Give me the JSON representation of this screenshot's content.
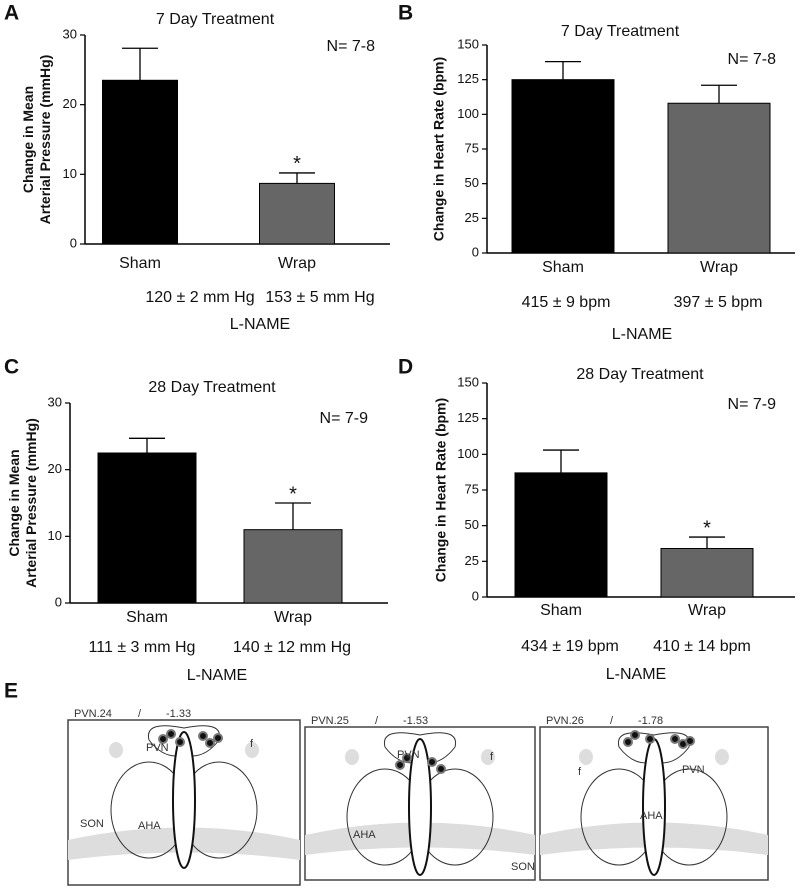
{
  "chart_data": [
    {
      "type": "bar",
      "panel": "A",
      "title": "7 Day  Treatment",
      "y_label": [
        "Change in Mean",
        "Arterial  Pressure (mmHg)"
      ],
      "categories": [
        "Sham",
        "Wrap"
      ],
      "values": [
        23.5,
        8.7
      ],
      "errors": [
        4.6,
        1.5
      ],
      "colors": [
        "#000000",
        "#666666"
      ],
      "ylim": [
        0,
        30
      ],
      "yticks": [
        0,
        10,
        20,
        30
      ],
      "n_label": "N= 7-8",
      "significant": [
        false,
        true
      ],
      "significance_label": "*",
      "baseline": [
        "120 ± 2 mm  Hg",
        "153 ± 5 mm  Hg"
      ],
      "group_label": "L-NAME"
    },
    {
      "type": "bar",
      "panel": "B",
      "title": "7 Day  Treatment",
      "y_label": [
        "Change in Heart  Rate (bpm)"
      ],
      "categories": [
        "Sham",
        "Wrap"
      ],
      "values": [
        125,
        108
      ],
      "errors": [
        13,
        13
      ],
      "colors": [
        "#000000",
        "#666666"
      ],
      "ylim": [
        0,
        150
      ],
      "yticks": [
        0,
        25,
        50,
        75,
        100,
        125,
        150
      ],
      "n_label": "N= 7-8",
      "significant": [
        false,
        false
      ],
      "significance_label": "*",
      "baseline": [
        "415 ± 9 bpm",
        "397 ± 5 bpm"
      ],
      "group_label": "L-NAME"
    },
    {
      "type": "bar",
      "panel": "C",
      "title": "28 Day Treatment",
      "y_label": [
        "Change in Mean",
        "Arterial Pressure (mmHg)"
      ],
      "categories": [
        "Sham",
        "Wrap"
      ],
      "values": [
        22.5,
        11
      ],
      "errors": [
        2.2,
        4
      ],
      "colors": [
        "#000000",
        "#666666"
      ],
      "ylim": [
        0,
        30
      ],
      "yticks": [
        0,
        10,
        20,
        30
      ],
      "n_label": "N= 7-9",
      "significant": [
        false,
        true
      ],
      "significance_label": "*",
      "baseline": [
        "111 ± 3 mm  Hg",
        "140 ± 12 mm  Hg"
      ],
      "group_label": "L-NAME"
    },
    {
      "type": "bar",
      "panel": "D",
      "title": "28  Day  Treatment",
      "y_label": [
        "Change in  Heart Rate (bpm)"
      ],
      "categories": [
        "Sham",
        "Wrap"
      ],
      "values": [
        87,
        34
      ],
      "errors": [
        16,
        8
      ],
      "colors": [
        "#000000",
        "#666666"
      ],
      "ylim": [
        0,
        150
      ],
      "yticks": [
        0,
        25,
        50,
        75,
        100,
        125,
        150
      ],
      "n_label": "N= 7-9",
      "significant": [
        false,
        true
      ],
      "significance_label": "*",
      "baseline": [
        "434 ± 19 bpm",
        "410 ± 14 bpm"
      ],
      "group_label": "L-NAME"
    }
  ],
  "brain_sections": {
    "panel": "E",
    "sections": [
      {
        "id": "PVN.24",
        "separator": "/",
        "bregma": "-1.33",
        "regions": [
          "PVN",
          "f",
          "AHA",
          "SON"
        ]
      },
      {
        "id": "PVN.25",
        "separator": "/",
        "bregma": "-1.53",
        "regions": [
          "PVN",
          "f",
          "AHA",
          "SON"
        ]
      },
      {
        "id": "PVN.26",
        "separator": "/",
        "bregma": "-1.78",
        "regions": [
          "f",
          "PVN",
          "AHA"
        ]
      }
    ]
  }
}
